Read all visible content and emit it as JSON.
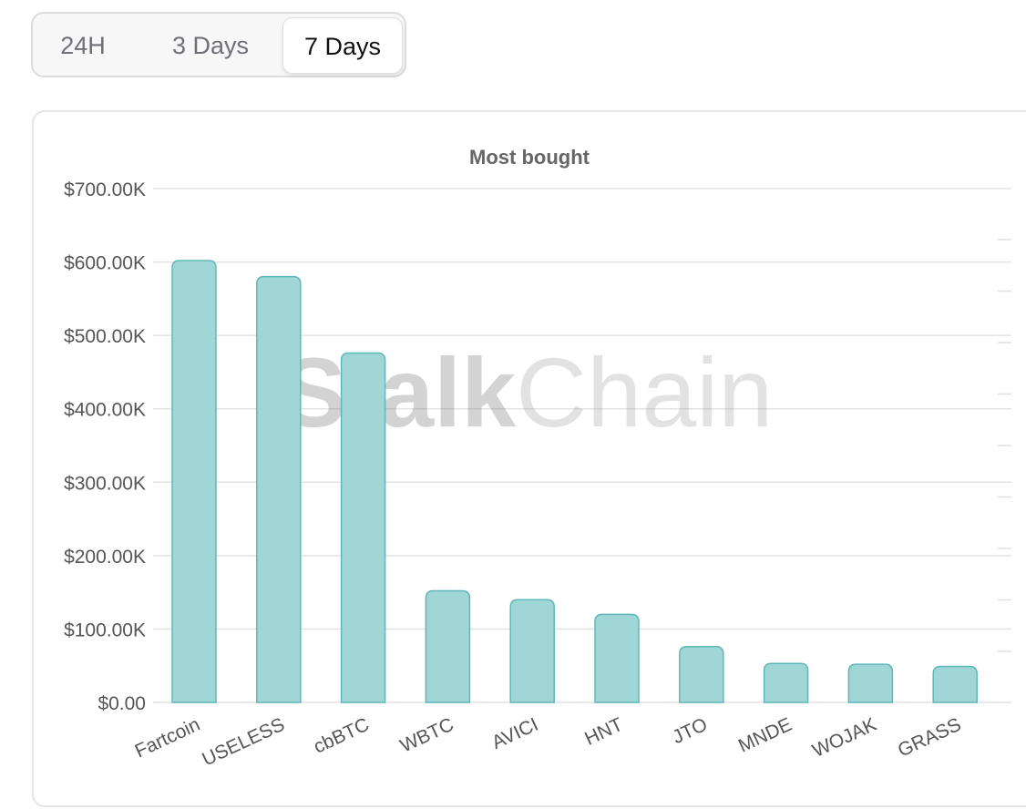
{
  "tabs": [
    {
      "label": "24H",
      "active": false
    },
    {
      "label": "3 Days",
      "active": false
    },
    {
      "label": "7 Days",
      "active": true
    }
  ],
  "watermark": {
    "strong": "Stalk",
    "light": "Chain"
  },
  "chart_data": {
    "type": "bar",
    "title": "Most bought",
    "xlabel": "",
    "ylabel": "",
    "categories": [
      "Fartcoin",
      "USELESS",
      "cbBTC",
      "WBTC",
      "AVICI",
      "HNT",
      "JTO",
      "MNDE",
      "WOJAK",
      "GRASS"
    ],
    "values": [
      602000,
      580000,
      476000,
      152000,
      140000,
      120000,
      76000,
      53000,
      52000,
      49000
    ],
    "ylim": [
      0,
      700000
    ],
    "yticks": [
      0,
      100000,
      200000,
      300000,
      400000,
      500000,
      600000,
      700000
    ],
    "ytick_labels": [
      "$0.00",
      "$100.00K",
      "$200.00K",
      "$300.00K",
      "$400.00K",
      "$500.00K",
      "$600.00K",
      "$700.00K"
    ],
    "grid": true,
    "legend": "none",
    "colors": {
      "bar_fill": "#a0d6d6",
      "bar_stroke": "#5fb8b8",
      "grid": "#e3e3e3"
    }
  }
}
